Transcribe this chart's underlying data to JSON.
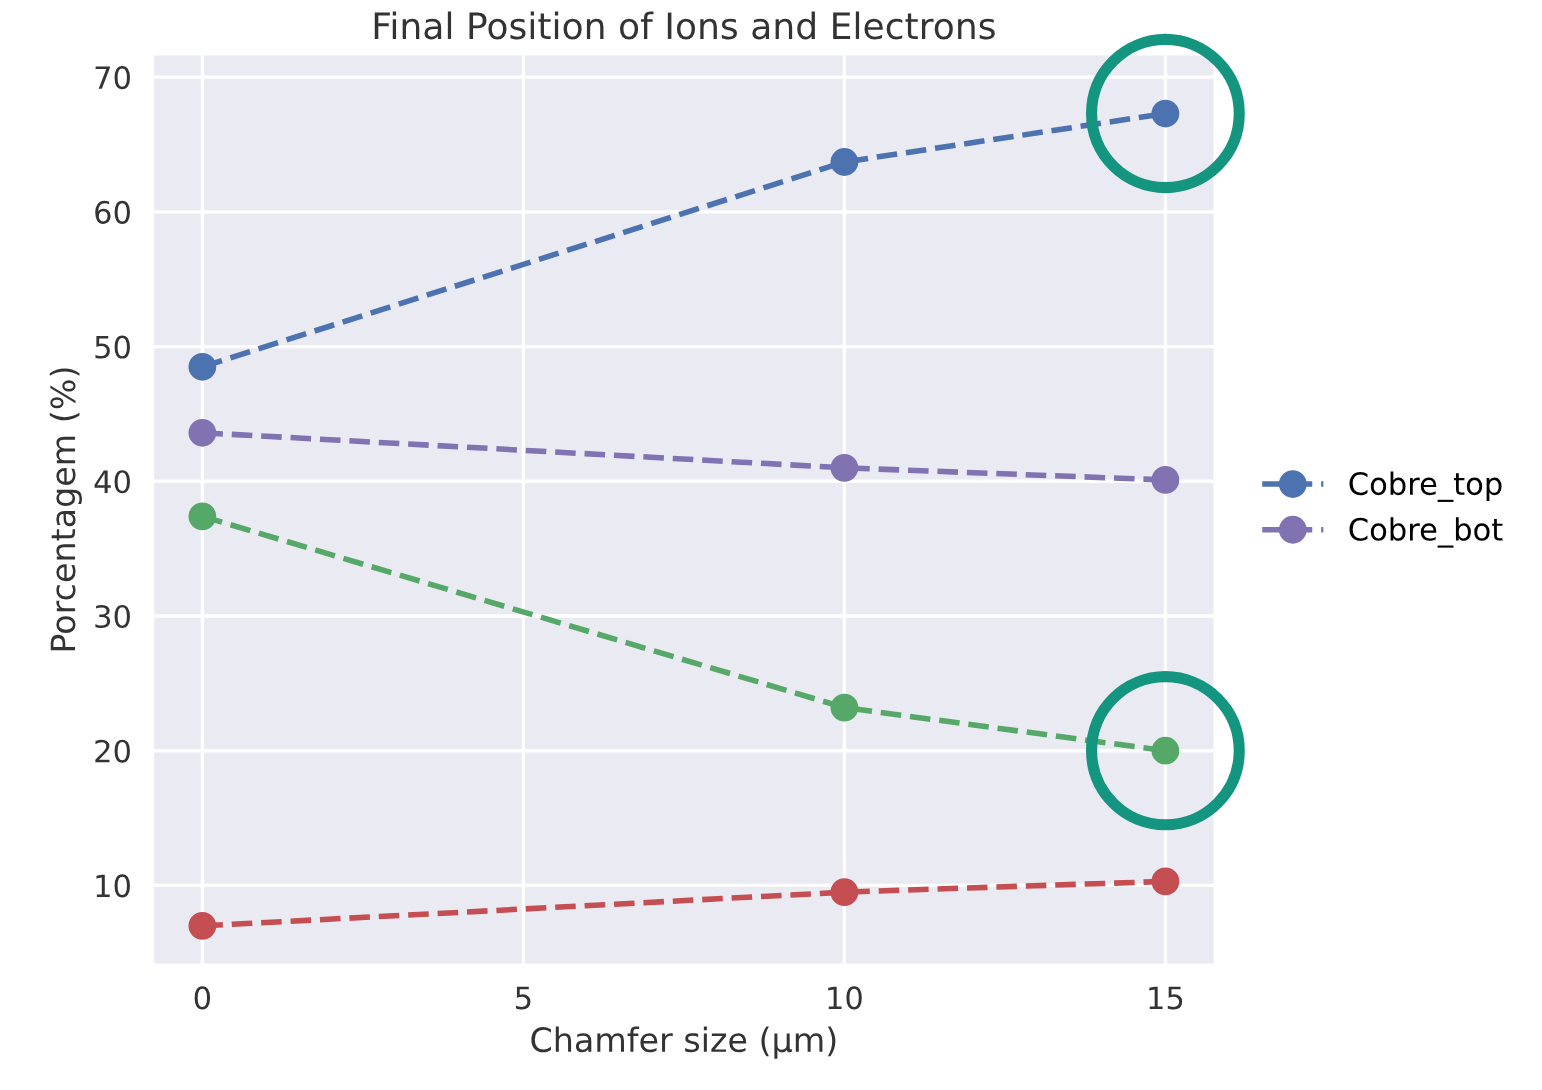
{
  "chart_data": {
    "type": "line",
    "title": "Final Position of Ions and Electrons",
    "xlabel": "Chamfer size (µm)",
    "ylabel": "Porcentagem (%)",
    "x": [
      0,
      10,
      15
    ],
    "series": [
      {
        "name": "Cobre_top",
        "color": "#4c72b0",
        "values": [
          48.5,
          63.7,
          67.3
        ]
      },
      {
        "color": "#55a868",
        "values": [
          37.4,
          23.2,
          20.0
        ]
      },
      {
        "color": "#c44e52",
        "values": [
          7.0,
          9.5,
          10.3
        ]
      },
      {
        "name": "Cobre_bot",
        "color": "#8172b2",
        "values": [
          43.6,
          41.0,
          40.1
        ]
      }
    ],
    "xlim": [
      -0.75,
      15.75
    ],
    "xticks": [
      0,
      5,
      10,
      15
    ],
    "ylim": [
      4.2,
      71.6
    ],
    "yticks": [
      10,
      20,
      30,
      40,
      50,
      60,
      70
    ],
    "grid": true,
    "legend": "right",
    "marker": "circle",
    "line_style": "dashed"
  }
}
